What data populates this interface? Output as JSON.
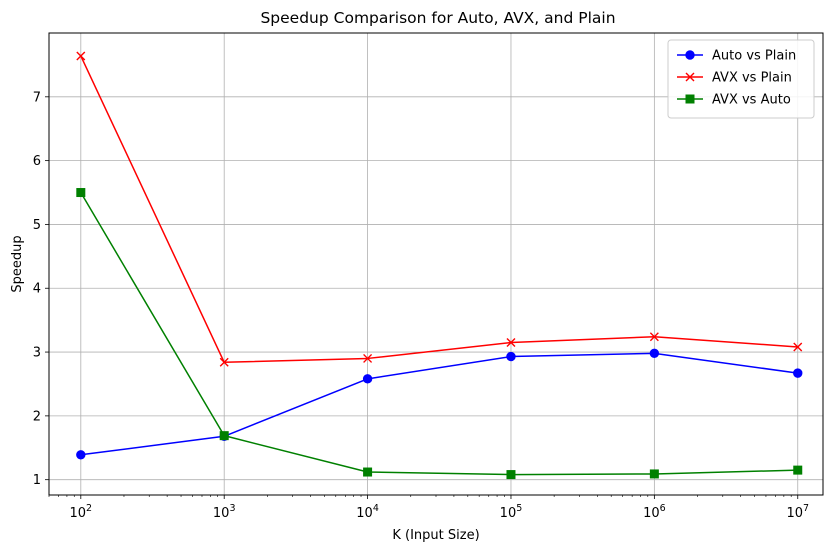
{
  "chart_data": {
    "type": "line",
    "title": "Speedup Comparison for Auto, AVX, and Plain",
    "xlabel": "K (Input Size)",
    "ylabel": "Speedup",
    "xscale": "log",
    "xlim": [
      60,
      15000000
    ],
    "ylim": [
      0.76,
      8.0
    ],
    "grid": true,
    "legend_position": "top-right",
    "x": [
      100,
      1000,
      10000,
      100000,
      1000000,
      10000000
    ],
    "x_tick_labels": [
      {
        "base": "10",
        "exp": "2"
      },
      {
        "base": "10",
        "exp": "3"
      },
      {
        "base": "10",
        "exp": "4"
      },
      {
        "base": "10",
        "exp": "5"
      },
      {
        "base": "10",
        "exp": "6"
      },
      {
        "base": "10",
        "exp": "7"
      }
    ],
    "y_ticks": [
      1,
      2,
      3,
      4,
      5,
      6,
      7
    ],
    "y_tick_labels": [
      "1",
      "2",
      "3",
      "4",
      "5",
      "6",
      "7"
    ],
    "series": [
      {
        "name": "Auto vs Plain",
        "color": "#0000ff",
        "marker": "circle",
        "values": [
          1.39,
          1.68,
          2.58,
          2.93,
          2.98,
          2.67
        ]
      },
      {
        "name": "AVX vs Plain",
        "color": "#ff0000",
        "marker": "x",
        "values": [
          7.64,
          2.84,
          2.9,
          3.15,
          3.24,
          3.08
        ]
      },
      {
        "name": "AVX vs Auto",
        "color": "#008000",
        "marker": "square",
        "values": [
          5.5,
          1.69,
          1.12,
          1.08,
          1.09,
          1.15
        ]
      }
    ]
  }
}
